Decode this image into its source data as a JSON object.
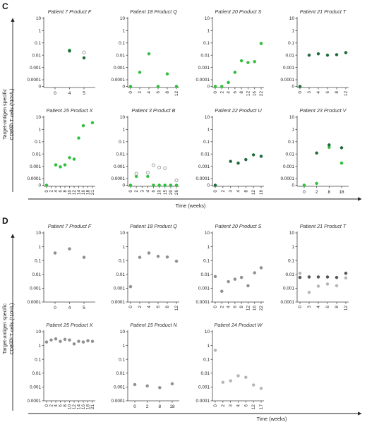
{
  "sections": [
    {
      "letter": "C",
      "ylabel_line1": "Target-antigen specific",
      "ylabel_line2": "CD8ᴳᴱᴺ T cells (*10⁶/L)",
      "xlabel": "Time (weeks)"
    },
    {
      "letter": "D",
      "ylabel_line1": "Target-antigen specific",
      "ylabel_line2": "CD8ᴳᴱᴺ T cells (*10⁶/L)",
      "xlabel": "Time (weeks)"
    }
  ],
  "colors": {
    "bright_green": "#2fbf3a",
    "dark_green": "#1e6b3c",
    "gray_dark": "#555555",
    "gray_mid": "#8f8f8f",
    "gray_light": "#b5b5b5"
  },
  "chart_data": [
    {
      "type": "scatter",
      "section": "C",
      "title": "Patient 7 Product F",
      "yscale": "log",
      "ylim": [
        0,
        10
      ],
      "yticks": [
        "10",
        "1",
        "0.1",
        "0.01",
        "0.001",
        "0.0001",
        "0"
      ],
      "xticks": [
        "0",
        "4",
        "5"
      ],
      "series": [
        {
          "color": "#2fbf3a",
          "style": "filled",
          "points": [
            [
              "4",
              0.025
            ]
          ]
        },
        {
          "color": "#1e6b3c",
          "style": "filled",
          "points": [
            [
              "4",
              0.022
            ],
            [
              "5",
              0.006
            ]
          ]
        },
        {
          "color": "#9a9a9a",
          "style": "open",
          "points": [
            [
              "5",
              0.017
            ]
          ]
        }
      ]
    },
    {
      "type": "scatter",
      "section": "C",
      "title": "Patient 18 Product Q",
      "yscale": "log",
      "ylim": [
        0,
        10
      ],
      "yticks": [
        "10",
        "1",
        "0.1",
        "0.01",
        "0.001",
        "0.0001",
        "0"
      ],
      "xticks": [
        "0",
        "2",
        "4",
        "6",
        "8",
        "12"
      ],
      "series": [
        {
          "color": "#2fbf3a",
          "style": "filled",
          "points": [
            [
              "0",
              0
            ],
            [
              "2",
              0.0004
            ],
            [
              "4",
              0.013
            ],
            [
              "6",
              0
            ],
            [
              "8",
              0.0003
            ],
            [
              "12",
              0
            ]
          ]
        }
      ]
    },
    {
      "type": "scatter",
      "section": "C",
      "title": "Patient 20 Product S",
      "yscale": "log",
      "ylim": [
        0,
        10
      ],
      "yticks": [
        "10",
        "1",
        "0.1",
        "0.01",
        "0.001",
        "0.0001",
        "0"
      ],
      "xticks": [
        "0",
        "2",
        "4",
        "6",
        "8",
        "12",
        "16",
        "22"
      ],
      "series": [
        {
          "color": "#2fbf3a",
          "style": "filled",
          "points": [
            [
              "0",
              0
            ],
            [
              "2",
              0
            ],
            [
              "4",
              6e-05
            ],
            [
              "6",
              0.0004
            ],
            [
              "8",
              0.0035
            ],
            [
              "12",
              0.0025
            ],
            [
              "16",
              0.003
            ],
            [
              "22",
              0.09
            ]
          ]
        }
      ]
    },
    {
      "type": "scatter",
      "section": "C",
      "title": "Patient 21 Product T",
      "yscale": "log",
      "ylim": [
        0,
        10
      ],
      "yticks": [
        "10",
        "1",
        "0.1",
        "0.01",
        "0.001",
        "0.0001",
        "0"
      ],
      "xticks": [
        "0",
        "3",
        "4",
        "6",
        "8",
        "12"
      ],
      "series": [
        {
          "color": "#1e6b3c",
          "style": "filled",
          "points": [
            [
              "0",
              0
            ],
            [
              "3",
              0.01
            ],
            [
              "4",
              0.013
            ],
            [
              "6",
              0.01
            ],
            [
              "8",
              0.011
            ],
            [
              "12",
              0.016
            ]
          ]
        }
      ]
    },
    {
      "type": "scatter",
      "section": "C",
      "title": "Patient 25 Product X",
      "yscale": "log",
      "ylim": [
        0,
        10
      ],
      "yticks": [
        "10",
        "1",
        "0.1",
        "0.01",
        "0.001",
        "0.0001",
        "0"
      ],
      "xticks": [
        "0",
        "2",
        "4",
        "6",
        "8",
        "10",
        "12",
        "14",
        "16",
        "18",
        "21"
      ],
      "series": [
        {
          "color": "#2fbf3a",
          "style": "filled",
          "points": [
            [
              "0",
              0
            ],
            [
              "4",
              0.0013
            ],
            [
              "6",
              0.0009
            ],
            [
              "8",
              0.0013
            ],
            [
              "10",
              0.005
            ],
            [
              "12",
              0.0038
            ],
            [
              "14",
              0.2
            ],
            [
              "16",
              2.0
            ],
            [
              "21",
              3.5
            ]
          ]
        }
      ]
    },
    {
      "type": "scatter",
      "section": "C",
      "title": "Patient 3 Product B",
      "yscale": "log",
      "ylim": [
        0,
        10
      ],
      "yticks": [
        "10",
        "1",
        "0.1",
        "0.01",
        "0.001",
        "0.0001",
        "0"
      ],
      "xticks": [
        "0",
        "2",
        "3",
        "4",
        "6",
        "10",
        "15",
        "20",
        "26"
      ],
      "series": [
        {
          "color": "#2fbf3a",
          "style": "filled",
          "points": [
            [
              "0",
              0
            ],
            [
              "2",
              0.00015
            ],
            [
              "4",
              0.00015
            ],
            [
              "6",
              0
            ],
            [
              "10",
              0
            ],
            [
              "15",
              0
            ],
            [
              "20",
              0
            ],
            [
              "26",
              0
            ]
          ]
        },
        {
          "color": "#9a9a9a",
          "style": "open",
          "points": [
            [
              "2",
              0.00025
            ],
            [
              "4",
              0.0003
            ],
            [
              "6",
              0.0012
            ],
            [
              "10",
              0.0008
            ],
            [
              "15",
              0.0007
            ],
            [
              "26",
              7e-05
            ]
          ]
        }
      ]
    },
    {
      "type": "scatter",
      "section": "C",
      "title": "Patient 22 Product U",
      "yscale": "log",
      "ylim": [
        0,
        10
      ],
      "yticks": [
        "10",
        "1",
        "0.1",
        "0.01",
        "0.001",
        "0.0001",
        "0"
      ],
      "xticks": [
        "0",
        "2",
        "3",
        "4",
        "8",
        "12",
        "16"
      ],
      "series": [
        {
          "color": "#1e6b3c",
          "style": "filled",
          "points": [
            [
              "0",
              0
            ],
            [
              "3",
              0.0025
            ],
            [
              "4",
              0.0018
            ],
            [
              "8",
              0.0035
            ],
            [
              "12",
              0.0085
            ],
            [
              "16",
              0.0065
            ]
          ]
        }
      ]
    },
    {
      "type": "scatter",
      "section": "C",
      "title": "Patient 23 Product V",
      "yscale": "log",
      "ylim": [
        0,
        10
      ],
      "yticks": [
        "10",
        "1",
        "0.1",
        "0.01",
        "0.001",
        "0.0001",
        "0"
      ],
      "xticks": [
        "0",
        "2",
        "8",
        "18"
      ],
      "series": [
        {
          "color": "#2fbf3a",
          "style": "filled",
          "points": [
            [
              "0",
              0
            ],
            [
              "2",
              4e-05
            ],
            [
              "8",
              0.035
            ],
            [
              "18",
              0.0018
            ]
          ]
        },
        {
          "color": "#1e6b3c",
          "style": "filled",
          "points": [
            [
              "2",
              0.012
            ],
            [
              "8",
              0.055
            ],
            [
              "18",
              0.032
            ]
          ]
        }
      ]
    },
    {
      "type": "scatter",
      "section": "D",
      "title": "Patient 7 Product F",
      "yscale": "log",
      "ylim": [
        0.0001,
        10
      ],
      "yticks": [
        "10",
        "1",
        "0.1",
        "0.01",
        "0.001",
        "0.0001"
      ],
      "xticks": [
        "0",
        "4",
        "5"
      ],
      "series": [
        {
          "color": "#8f8f8f",
          "style": "filled",
          "points": [
            [
              "0",
              0.35
            ],
            [
              "4",
              0.7
            ],
            [
              "5",
              0.17
            ]
          ]
        }
      ]
    },
    {
      "type": "scatter",
      "section": "D",
      "title": "Patient 18 Product Q",
      "yscale": "log",
      "ylim": [
        0.0001,
        10
      ],
      "yticks": [
        "10",
        "1",
        "0.1",
        "0.01",
        "0.001",
        "0.0001"
      ],
      "xticks": [
        "0",
        "2",
        "4",
        "6",
        "8",
        "12"
      ],
      "series": [
        {
          "color": "#8f8f8f",
          "style": "filled",
          "points": [
            [
              "0",
              0.0013
            ],
            [
              "2",
              0.17
            ],
            [
              "4",
              0.35
            ],
            [
              "6",
              0.2
            ],
            [
              "8",
              0.18
            ],
            [
              "12",
              0.09
            ]
          ]
        }
      ]
    },
    {
      "type": "scatter",
      "section": "D",
      "title": "Patient 20 Product S",
      "yscale": "log",
      "ylim": [
        0.0001,
        10
      ],
      "yticks": [
        "10",
        "1",
        "0.1",
        "0.01",
        "0.001",
        "0.0001"
      ],
      "xticks": [
        "0",
        "2",
        "4",
        "6",
        "8",
        "12",
        "16",
        "22"
      ],
      "series": [
        {
          "color": "#8f8f8f",
          "style": "filled",
          "points": [
            [
              "0",
              0.007
            ],
            [
              "2",
              0.0006
            ],
            [
              "4",
              0.003
            ],
            [
              "6",
              0.0045
            ],
            [
              "8",
              0.006
            ],
            [
              "12",
              0.0015
            ],
            [
              "16",
              0.013
            ],
            [
              "22",
              0.03
            ]
          ]
        }
      ]
    },
    {
      "type": "scatter",
      "section": "D",
      "title": "Patient 21 Product T",
      "yscale": "log",
      "ylim": [
        0.0001,
        10
      ],
      "yticks": [
        "10",
        "1",
        "0.1",
        "0.01",
        "0.001",
        "0.0001"
      ],
      "xticks": [
        "0",
        "3",
        "4",
        "6",
        "8",
        "12"
      ],
      "series": [
        {
          "color": "#555555",
          "style": "filled",
          "points": [
            [
              "0",
              0.006
            ],
            [
              "3",
              0.0065
            ],
            [
              "4",
              0.0065
            ],
            [
              "6",
              0.0065
            ],
            [
              "8",
              0.006
            ],
            [
              "12",
              0.012
            ]
          ]
        },
        {
          "color": "#b5b5b5",
          "style": "filled",
          "points": [
            [
              "0",
              0.012
            ],
            [
              "3",
              0.0005
            ],
            [
              "4",
              0.0014
            ],
            [
              "6",
              0.002
            ],
            [
              "8",
              0.0015
            ],
            [
              "12",
              0.0055
            ]
          ]
        }
      ]
    },
    {
      "type": "scatter",
      "section": "D",
      "title": "Patient 25 Product X",
      "yscale": "log",
      "ylim": [
        0.0001,
        10
      ],
      "yticks": [
        "10",
        "1",
        "0.1",
        "0.01",
        "0.001",
        "0.0001"
      ],
      "xticks": [
        "0",
        "2",
        "4",
        "6",
        "8",
        "10",
        "12",
        "14",
        "16",
        "18",
        "21"
      ],
      "series": [
        {
          "color": "#8f8f8f",
          "style": "filled",
          "points": [
            [
              "0",
              1.8
            ],
            [
              "2",
              2.5
            ],
            [
              "4",
              3.0
            ],
            [
              "6",
              2.0
            ],
            [
              "8",
              2.8
            ],
            [
              "10",
              2.5
            ],
            [
              "12",
              1.3
            ],
            [
              "14",
              2.0
            ],
            [
              "16",
              1.8
            ],
            [
              "18",
              2.2
            ],
            [
              "21",
              2.0
            ]
          ]
        }
      ]
    },
    {
      "type": "scatter",
      "section": "D",
      "title": "Patient 15 Product N",
      "yscale": "log",
      "ylim": [
        0.0001,
        10
      ],
      "yticks": [
        "10",
        "1",
        "0.1",
        "0.01",
        "0.001",
        "0.0001"
      ],
      "xticks": [
        "0",
        "2",
        "8",
        "18"
      ],
      "series": [
        {
          "color": "#8f8f8f",
          "style": "filled",
          "points": [
            [
              "0",
              0.0015
            ],
            [
              "2",
              0.0012
            ],
            [
              "8",
              0.0009
            ],
            [
              "18",
              0.0017
            ]
          ]
        }
      ]
    },
    {
      "type": "scatter",
      "section": "D",
      "title": "Patient 24 Product W",
      "yscale": "log",
      "ylim": [
        0.0001,
        10
      ],
      "yticks": [
        "10",
        "1",
        "0.1",
        "0.01",
        "0.001",
        "0.0001"
      ],
      "xticks": [
        "0",
        "2",
        "3",
        "4",
        "6",
        "12",
        "17"
      ],
      "series": [
        {
          "color": "#b5b5b5",
          "style": "filled",
          "points": [
            [
              "0",
              0.45
            ],
            [
              "2",
              0.0022
            ],
            [
              "3",
              0.0028
            ],
            [
              "4",
              0.0065
            ],
            [
              "6",
              0.005
            ],
            [
              "12",
              0.0014
            ],
            [
              "17",
              0.0008
            ]
          ]
        }
      ]
    }
  ]
}
